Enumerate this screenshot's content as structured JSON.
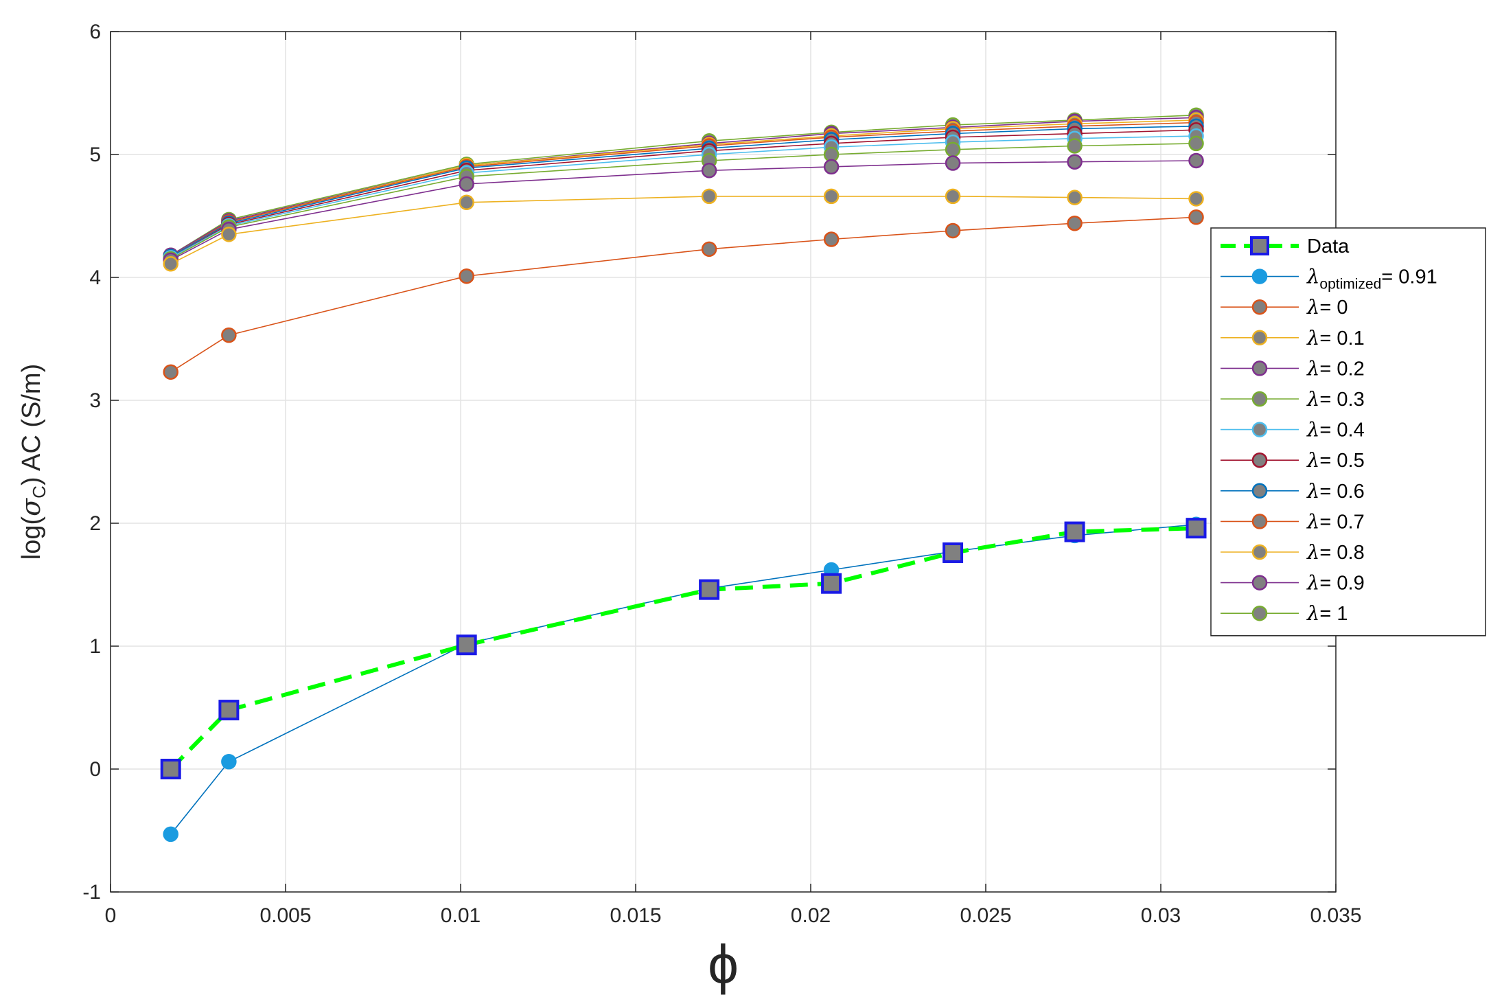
{
  "chart_data": {
    "type": "line",
    "title": "",
    "xlabel": "ϕ",
    "ylabel": "log(σC) AC (S/m)",
    "ylabel_parts": {
      "pre": "log(",
      "sigma": "σ",
      "sub": "C",
      "post": ") AC (S/m)"
    },
    "xlim": [
      0,
      0.035
    ],
    "ylim": [
      -1,
      6
    ],
    "xticks": [
      0,
      0.005,
      0.01,
      0.015,
      0.02,
      0.025,
      0.03,
      0.035
    ],
    "xtick_labels": [
      "0",
      "0.005",
      "0.01",
      "0.015",
      "0.02",
      "0.025",
      "0.03",
      "0.035"
    ],
    "yticks": [
      -1,
      0,
      1,
      2,
      3,
      4,
      5,
      6
    ],
    "ytick_labels": [
      "-1",
      "0",
      "1",
      "2",
      "3",
      "4",
      "5",
      "6"
    ],
    "grid": true,
    "legend_position": "right",
    "x": [
      0.00172,
      0.00338,
      0.01017,
      0.0171,
      0.02059,
      0.02406,
      0.02754,
      0.03101
    ],
    "series": [
      {
        "name": "Data",
        "legend_label": "Data",
        "color": "#00FF00",
        "marker": "square",
        "marker_fill": "#808080",
        "marker_edge": "#1A1AE6",
        "dashed": true,
        "values": [
          0.0,
          0.48,
          1.01,
          1.46,
          1.51,
          1.76,
          1.93,
          1.96
        ]
      },
      {
        "name": "λoptimized= 0.91",
        "legend_parts": {
          "lambda": "λ",
          "sub": "optimized",
          "rest": "= 0.91"
        },
        "color": "#0072BD",
        "marker_fill": "#1A9BE0",
        "marker_edge": "#1A9BE0",
        "values": [
          -0.53,
          0.06,
          1.02,
          1.47,
          1.62,
          1.77,
          1.9,
          1.99
        ]
      },
      {
        "name": "λ= 0",
        "legend_parts": {
          "lambda": "λ",
          "rest": "= 0"
        },
        "color": "#D95319",
        "values": [
          3.23,
          3.53,
          4.01,
          4.23,
          4.31,
          4.38,
          4.44,
          4.49
        ]
      },
      {
        "name": "λ= 0.1",
        "legend_parts": {
          "lambda": "λ",
          "rest": "= 0.1"
        },
        "color": "#EDB120",
        "values": [
          4.11,
          4.35,
          4.61,
          4.66,
          4.66,
          4.66,
          4.65,
          4.64
        ]
      },
      {
        "name": "λ= 0.2",
        "legend_parts": {
          "lambda": "λ",
          "rest": "= 0.2"
        },
        "color": "#7E2F8E",
        "values": [
          4.14,
          4.39,
          4.76,
          4.87,
          4.9,
          4.93,
          4.94,
          4.95
        ]
      },
      {
        "name": "λ= 0.3",
        "legend_parts": {
          "lambda": "λ",
          "rest": "= 0.3"
        },
        "color": "#77AC30",
        "values": [
          4.15,
          4.41,
          4.82,
          4.95,
          5.0,
          5.04,
          5.07,
          5.09
        ]
      },
      {
        "name": "λ= 0.4",
        "legend_parts": {
          "lambda": "λ",
          "rest": "= 0.4"
        },
        "color": "#4DBEEE",
        "values": [
          4.16,
          4.42,
          4.85,
          5.0,
          5.06,
          5.1,
          5.13,
          5.15
        ]
      },
      {
        "name": "λ= 0.5",
        "legend_parts": {
          "lambda": "λ",
          "rest": "= 0.5"
        },
        "color": "#A2142F",
        "values": [
          4.16,
          4.43,
          4.87,
          5.03,
          5.09,
          5.14,
          5.17,
          5.2
        ]
      },
      {
        "name": "λ= 0.6",
        "legend_parts": {
          "lambda": "λ",
          "rest": "= 0.6"
        },
        "color": "#0072BD",
        "values": [
          4.17,
          4.44,
          4.89,
          5.05,
          5.12,
          5.17,
          5.21,
          5.23
        ]
      },
      {
        "name": "λ= 0.7",
        "legend_parts": {
          "lambda": "λ",
          "rest": "= 0.7"
        },
        "color": "#D95319",
        "values": [
          4.17,
          4.45,
          4.9,
          5.07,
          5.14,
          5.19,
          5.23,
          5.26
        ]
      },
      {
        "name": "λ= 0.8",
        "legend_parts": {
          "lambda": "λ",
          "rest": "= 0.8"
        },
        "color": "#EDB120",
        "values": [
          4.17,
          4.45,
          4.91,
          5.08,
          5.15,
          5.21,
          5.25,
          5.28
        ]
      },
      {
        "name": "λ= 0.9",
        "legend_parts": {
          "lambda": "λ",
          "rest": "= 0.9"
        },
        "color": "#7E2F8E",
        "values": [
          4.18,
          4.46,
          4.91,
          5.09,
          5.17,
          5.22,
          5.27,
          5.3
        ]
      },
      {
        "name": "λ= 1",
        "legend_parts": {
          "lambda": "λ",
          "rest": "= 1"
        },
        "color": "#77AC30",
        "values": [
          4.18,
          4.47,
          4.92,
          5.11,
          5.18,
          5.24,
          5.28,
          5.32
        ]
      }
    ]
  }
}
